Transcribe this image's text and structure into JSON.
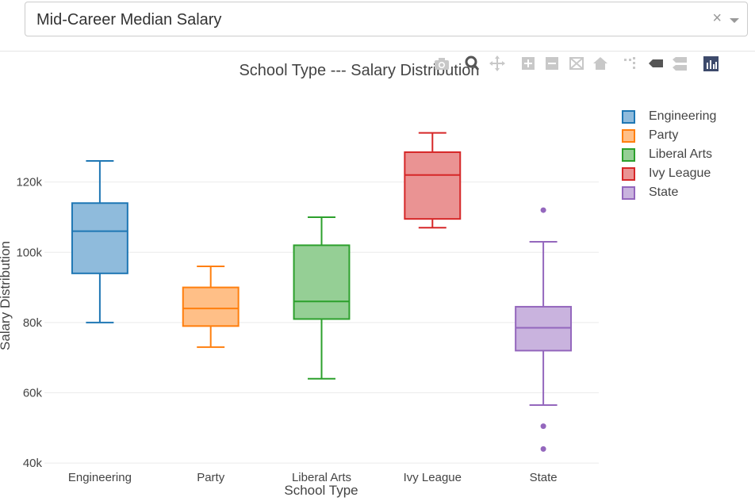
{
  "dropdown": {
    "value": "Mid-Career Median Salary",
    "clear_glyph": "×"
  },
  "toolbar": {
    "icons": [
      "camera-icon",
      "zoom-icon",
      "pan-icon",
      "zoom-in-icon",
      "zoom-out-icon",
      "autoscale-icon",
      "reset-axes-icon",
      "spike-lines-icon",
      "hover-closest-icon",
      "hover-compare-icon",
      "plotly-logo-icon"
    ]
  },
  "chart_data": {
    "type": "box",
    "title": "School Type --- Salary Distribution",
    "xlabel": "School Type",
    "ylabel": "Salary Distribution",
    "ylim": [
      38000,
      140000
    ],
    "yticks": [
      40000,
      60000,
      80000,
      100000,
      120000
    ],
    "ytick_labels": [
      "40k",
      "60k",
      "80k",
      "100k",
      "120k"
    ],
    "grid": true,
    "legend_position": "top-right",
    "categories": [
      "Engineering",
      "Party",
      "Liberal Arts",
      "Ivy League",
      "State"
    ],
    "series": [
      {
        "name": "Engineering",
        "color": "#1f77b4",
        "fill": "#8fbbdc",
        "min": 80000,
        "q1": 94000,
        "median": 106000,
        "q3": 114000,
        "max": 126000,
        "outliers": []
      },
      {
        "name": "Party",
        "color": "#ff7f0e",
        "fill": "#ffbf87",
        "min": 73000,
        "q1": 79000,
        "median": 84000,
        "q3": 90000,
        "max": 96000,
        "outliers": []
      },
      {
        "name": "Liberal Arts",
        "color": "#2ca02c",
        "fill": "#95cf95",
        "min": 64000,
        "q1": 81000,
        "median": 86000,
        "q3": 102000,
        "max": 110000,
        "outliers": []
      },
      {
        "name": "Ivy League",
        "color": "#d62728",
        "fill": "#ea9393",
        "min": 107000,
        "q1": 109500,
        "median": 122000,
        "q3": 128500,
        "max": 134000,
        "outliers": []
      },
      {
        "name": "State",
        "color": "#9467bd",
        "fill": "#c9b3de",
        "min": 56500,
        "q1": 72000,
        "median": 78500,
        "q3": 84500,
        "max": 103000,
        "outliers": [
          112000,
          50500,
          44000
        ]
      }
    ]
  }
}
